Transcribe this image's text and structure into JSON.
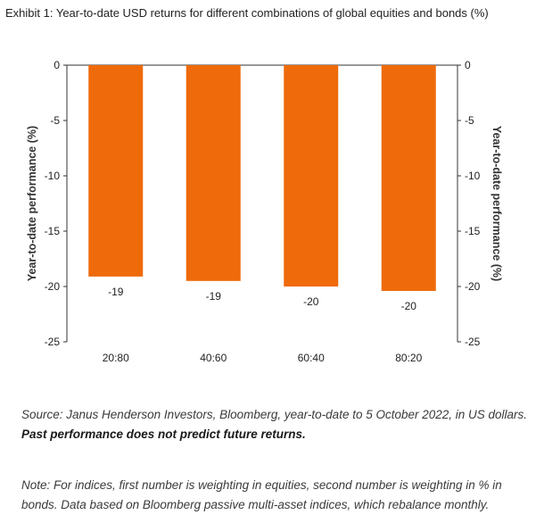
{
  "chart_data": {
    "type": "bar",
    "title": "Exhibit 1: Year-to-date USD returns for different combinations of global equities and bonds (%)",
    "categories": [
      "20:80",
      "40:60",
      "60:40",
      "80:20"
    ],
    "values": [
      -19.1,
      -19.5,
      -20.0,
      -20.4
    ],
    "data_labels": [
      "-19",
      "-19",
      "-20",
      "-20"
    ],
    "ylabel_left": "Year-to-date performance (%)",
    "ylabel_right": "Year-to-date performance (%)",
    "ylim": [
      -25,
      0
    ],
    "yticks": [
      0,
      -5,
      -10,
      -15,
      -20,
      -25
    ],
    "bar_color": "#ee6a0a",
    "grid": false,
    "legend": "none"
  },
  "footer": {
    "source": "Source: Janus Henderson Investors, Bloomberg, year-to-date to 5 October 2022, in US dollars.",
    "disclaimer": "Past performance does not predict future returns.",
    "note": "Note: For indices, first number is weighting in equities, second number is weighting in % in bonds. Data based on Bloomberg passive multi-asset indices, which rebalance monthly."
  }
}
